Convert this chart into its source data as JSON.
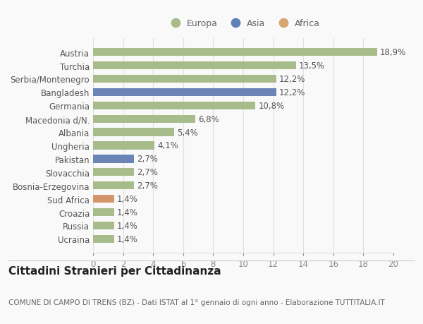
{
  "countries": [
    "Austria",
    "Turchia",
    "Serbia/Montenegro",
    "Bangladesh",
    "Germania",
    "Macedonia d/N.",
    "Albania",
    "Ungheria",
    "Pakistan",
    "Slovacchia",
    "Bosnia-Erzegovina",
    "Sud Africa",
    "Croazia",
    "Russia",
    "Ucraina"
  ],
  "values": [
    18.9,
    13.5,
    12.2,
    12.2,
    10.8,
    6.8,
    5.4,
    4.1,
    2.7,
    2.7,
    2.7,
    1.4,
    1.4,
    1.4,
    1.4
  ],
  "labels": [
    "18,9%",
    "13,5%",
    "12,2%",
    "12,2%",
    "10,8%",
    "6,8%",
    "5,4%",
    "4,1%",
    "2,7%",
    "2,7%",
    "2,7%",
    "1,4%",
    "1,4%",
    "1,4%",
    "1,4%"
  ],
  "continents": [
    "Europa",
    "Europa",
    "Europa",
    "Asia",
    "Europa",
    "Europa",
    "Europa",
    "Europa",
    "Asia",
    "Europa",
    "Europa",
    "Africa",
    "Europa",
    "Europa",
    "Europa"
  ],
  "colors": {
    "Europa": "#a8bb8a",
    "Asia": "#6a85b5",
    "Africa": "#d4956a"
  },
  "legend_colors": {
    "Europa": "#a8bb8a",
    "Asia": "#6080b8",
    "Africa": "#d4a870"
  },
  "xlim": [
    0,
    20
  ],
  "xticks": [
    0,
    2,
    4,
    6,
    8,
    10,
    12,
    14,
    16,
    18,
    20
  ],
  "title": "Cittadini Stranieri per Cittadinanza",
  "subtitle": "COMUNE DI CAMPO DI TRENS (BZ) - Dati ISTAT al 1° gennaio di ogni anno - Elaborazione TUTTITALIA.IT",
  "bg_color": "#f9f9f9",
  "grid_color": "#e0e0e0",
  "bar_height": 0.6,
  "label_fontsize": 8.5,
  "ytick_fontsize": 8.5,
  "xtick_fontsize": 8.5,
  "title_fontsize": 11,
  "subtitle_fontsize": 7.5,
  "legend_fontsize": 9
}
